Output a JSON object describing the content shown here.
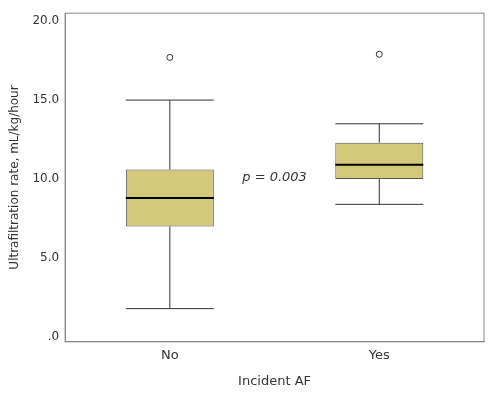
{
  "chart_data": {
    "type": "box",
    "xlabel": "Incident AF",
    "ylabel": "Ultrafiltration rate, mL/kg/hour",
    "annotation": "p = 0.003",
    "categories": [
      "No",
      "Yes"
    ],
    "boxes": [
      {
        "q1": 7.0,
        "median": 8.8,
        "q3": 10.6,
        "whisker_low": 1.8,
        "whisker_high": 15.0,
        "outliers": [
          17.7
        ]
      },
      {
        "q1": 10.0,
        "median": 10.9,
        "q3": 12.3,
        "whisker_low": 8.4,
        "whisker_high": 13.5,
        "outliers": [
          17.9
        ]
      }
    ],
    "color": "#d4c87a",
    "ylim": [
      -0.3,
      20.5
    ],
    "yticks": [
      {
        "value": 0.0,
        "label": ".0"
      },
      {
        "value": 5.0,
        "label": "5.0"
      },
      {
        "value": 10.0,
        "label": "10.0"
      },
      {
        "value": 15.0,
        "label": "15.0"
      },
      {
        "value": 20.0,
        "label": "20.0"
      }
    ],
    "grid": false
  }
}
